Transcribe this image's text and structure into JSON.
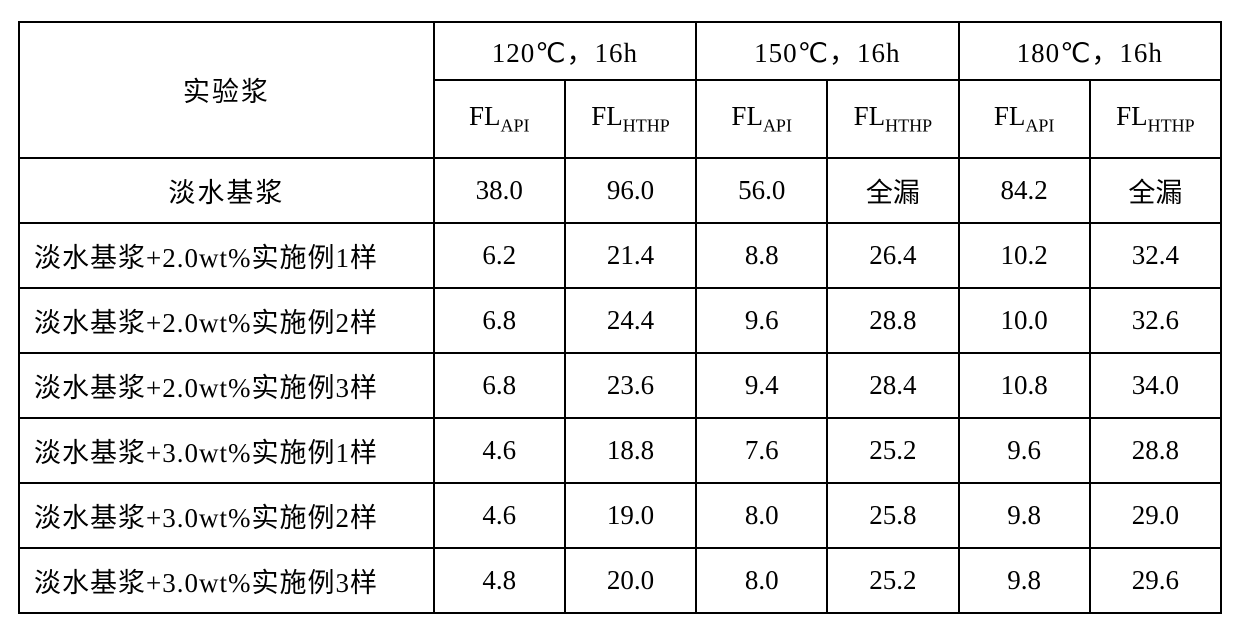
{
  "table": {
    "border_color": "#000000",
    "background_color": "#ffffff",
    "text_color": "#000000",
    "font_family": "SimSun",
    "corner_label": "实验浆",
    "condition_groups": [
      {
        "label": "120℃，16h"
      },
      {
        "label": "150℃，16h"
      },
      {
        "label": "180℃，16h"
      }
    ],
    "sub_columns_per_group": [
      {
        "main": "FL",
        "sub": "API"
      },
      {
        "main": "FL",
        "sub": "HTHP"
      }
    ],
    "rows": [
      {
        "label": "淡水基浆",
        "center": true,
        "values": [
          "38.0",
          "96.0",
          "56.0",
          "全漏",
          "84.2",
          "全漏"
        ]
      },
      {
        "label": "淡水基浆+2.0wt%实施例1样",
        "center": false,
        "values": [
          "6.2",
          "21.4",
          "8.8",
          "26.4",
          "10.2",
          "32.4"
        ]
      },
      {
        "label": "淡水基浆+2.0wt%实施例2样",
        "center": false,
        "values": [
          "6.8",
          "24.4",
          "9.6",
          "28.8",
          "10.0",
          "32.6"
        ]
      },
      {
        "label": "淡水基浆+2.0wt%实施例3样",
        "center": false,
        "values": [
          "6.8",
          "23.6",
          "9.4",
          "28.4",
          "10.8",
          "34.0"
        ]
      },
      {
        "label": "淡水基浆+3.0wt%实施例1样",
        "center": false,
        "values": [
          "4.6",
          "18.8",
          "7.6",
          "25.2",
          "9.6",
          "28.8"
        ]
      },
      {
        "label": "淡水基浆+3.0wt%实施例2样",
        "center": false,
        "values": [
          "4.6",
          "19.0",
          "8.0",
          "25.8",
          "9.8",
          "29.0"
        ]
      },
      {
        "label": "淡水基浆+3.0wt%实施例3样",
        "center": false,
        "values": [
          "4.8",
          "20.0",
          "8.0",
          "25.2",
          "9.8",
          "29.6"
        ]
      }
    ]
  }
}
